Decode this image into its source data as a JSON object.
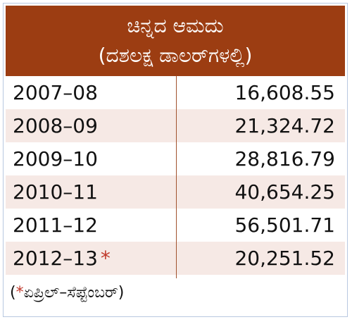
{
  "header": {
    "title": "ಚಿನ್ನದ ಆಮದು",
    "subtitle": "(ದಶಲಕ್ಷ ಡಾಲರ್‌ಗಳಲ್ಲಿ)"
  },
  "table": {
    "rows": [
      [
        "2007–08",
        "16,608.55"
      ],
      [
        "2008–09",
        "21,324.72"
      ],
      [
        "2009–10",
        "28,816.79"
      ],
      [
        "2010–11",
        "40,654.25"
      ],
      [
        "2011–12",
        "56,501.71"
      ],
      [
        "2012–13",
        "20,251.52"
      ]
    ],
    "marker": "*"
  },
  "footnote": {
    "open": "(",
    "marker": "*",
    "text": "ಏಪ್ರಿಲ್–ಸೆಪ್ಟೆಂಬರ್)"
  }
}
